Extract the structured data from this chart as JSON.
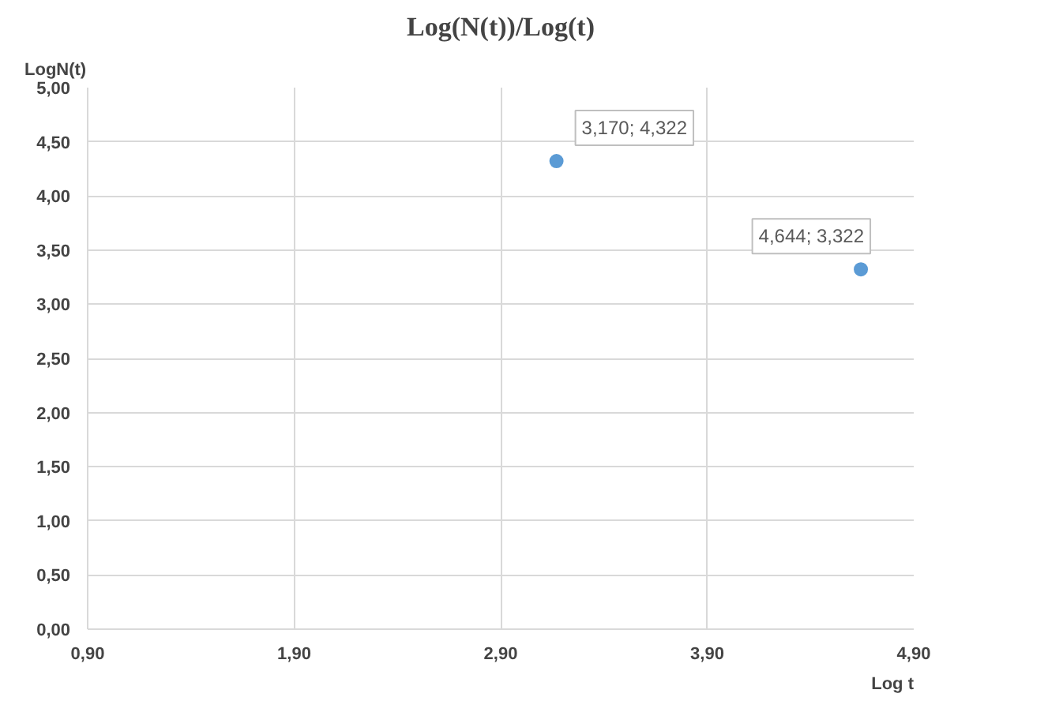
{
  "chart_data": {
    "type": "scatter",
    "title": "Log(N(t))/Log(t)",
    "xlabel": "Log t",
    "ylabel": "LogN(t)",
    "x": [
      3.17,
      4.644
    ],
    "series": [
      {
        "color": "#5b9bd5",
        "values": [
          4.322,
          3.322
        ],
        "value_labels": [
          "3,170; 4,322",
          "4,644; 3,322"
        ]
      }
    ],
    "xlim": [
      0.9,
      4.9
    ],
    "ylim": [
      0,
      5
    ],
    "xticks": [
      {
        "value": 0.9,
        "label": "0,90"
      },
      {
        "value": 1.9,
        "label": "1,90"
      },
      {
        "value": 2.9,
        "label": "2,90"
      },
      {
        "value": 3.9,
        "label": "3,90"
      },
      {
        "value": 4.9,
        "label": "4,90"
      }
    ],
    "yticks": [
      {
        "value": 0,
        "label": "0,00"
      },
      {
        "value": 0.5,
        "label": "0,50"
      },
      {
        "value": 1,
        "label": "1,00"
      },
      {
        "value": 1.5,
        "label": "1,50"
      },
      {
        "value": 2,
        "label": "2,00"
      },
      {
        "value": 2.5,
        "label": "2,50"
      },
      {
        "value": 3,
        "label": "3,00"
      },
      {
        "value": 3.5,
        "label": "3,50"
      },
      {
        "value": 4,
        "label": "4,00"
      },
      {
        "value": 4.5,
        "label": "4,50"
      },
      {
        "value": 5,
        "label": "5,00"
      }
    ],
    "grid": true,
    "marker": "circle"
  }
}
